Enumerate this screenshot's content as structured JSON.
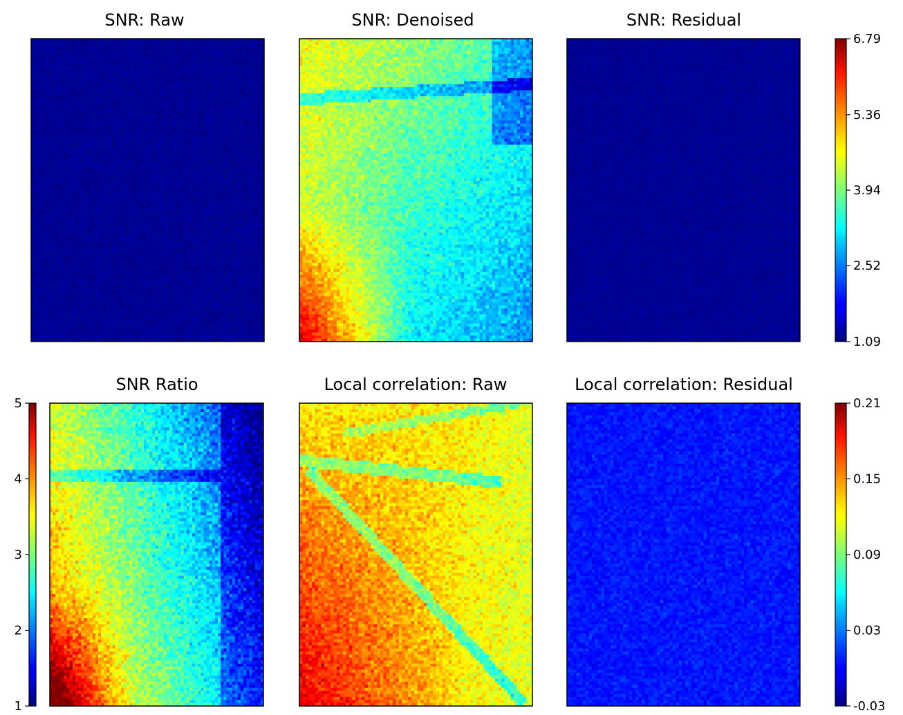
{
  "chart_data": [
    {
      "type": "heatmap",
      "title": "SNR: Raw",
      "colormap": "jet",
      "clim": [
        1.09,
        6.79
      ],
      "pattern": "uniform",
      "base_value": 1.2,
      "noise": 0.08,
      "colorbar": "top-right"
    },
    {
      "type": "heatmap",
      "title": "SNR: Denoised",
      "colormap": "jet",
      "clim": [
        1.09,
        6.79
      ],
      "pattern": "snr_denoised",
      "noise": 0.35,
      "colorbar": "top-right"
    },
    {
      "type": "heatmap",
      "title": "SNR: Residual",
      "colormap": "jet",
      "clim": [
        1.09,
        6.79
      ],
      "pattern": "uniform",
      "base_value": 1.2,
      "noise": 0.06,
      "colorbar": "top-right"
    },
    {
      "type": "heatmap",
      "title": "SNR Ratio",
      "colormap": "jet",
      "clim": [
        1,
        5
      ],
      "pattern": "snr_ratio",
      "noise": 0.3,
      "colorbar": "left"
    },
    {
      "type": "heatmap",
      "title": "Local correlation: Raw",
      "colormap": "jet",
      "clim": [
        -0.03,
        0.21
      ],
      "pattern": "corr_raw",
      "noise": 0.015,
      "colorbar": "bottom-right"
    },
    {
      "type": "heatmap",
      "title": "Local correlation: Residual",
      "colormap": "jet",
      "clim": [
        -0.03,
        0.21
      ],
      "pattern": "uniform",
      "base_value": 0.005,
      "noise": 0.008,
      "colorbar": "bottom-right"
    }
  ],
  "colorbars": {
    "snr_top": {
      "ticks": [
        6.79,
        5.36,
        3.94,
        2.52,
        1.09
      ],
      "labels": [
        "6.79",
        "5.36",
        "3.94",
        "2.52",
        "1.09"
      ]
    },
    "snr_ratio": {
      "ticks": [
        5,
        4,
        3,
        2,
        1
      ],
      "labels": [
        "5",
        "4",
        "3",
        "2",
        "1"
      ]
    },
    "corr_bottom": {
      "ticks": [
        0.21,
        0.15,
        0.09,
        0.03,
        -0.03
      ],
      "labels": [
        "0.21",
        "0.15",
        "0.09",
        "0.03",
        "-0.03"
      ]
    }
  }
}
